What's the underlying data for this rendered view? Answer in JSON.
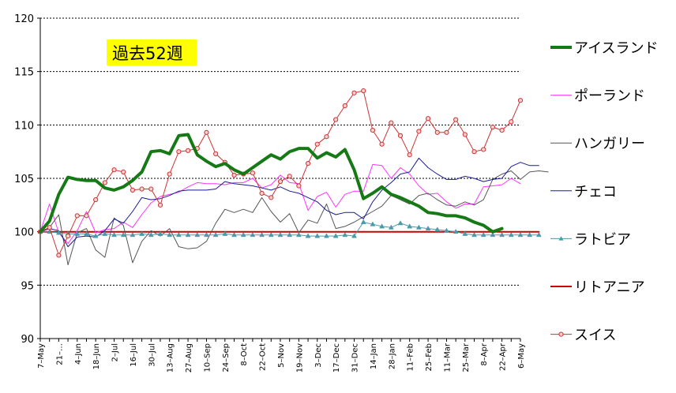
{
  "chart_data": {
    "type": "line",
    "title": "過去52週",
    "title_highlight_color": "#ffff00",
    "xlabel": "",
    "ylabel": "",
    "ylim": [
      90,
      120
    ],
    "yticks": [
      90,
      95,
      100,
      105,
      110,
      115,
      120
    ],
    "grid": "horizontal-dashed",
    "legend_position": "right",
    "x_tick_labels": [
      "7–May",
      "21–…",
      "4–Jun",
      "18–Jun",
      "2–Jul",
      "16–Jul",
      "30–Jul",
      "13–Aug",
      "27–Aug",
      "10–Sep",
      "24–Sep",
      "8–Oct",
      "22–Oct",
      "5–Nov",
      "19–Nov",
      "3–Dec",
      "17–Dec",
      "31–Dec",
      "14–Jan",
      "28–Jan",
      "11–Feb",
      "25–Feb",
      "11–Mar",
      "25–Mar",
      "8–Apr",
      "22–Apr",
      "6–May"
    ],
    "x_tick_every": 2,
    "series": [
      {
        "name": "アイスランド",
        "color": "#157a15",
        "width": 4,
        "marker": "none",
        "values": [
          100,
          101,
          103.5,
          105.1,
          104.9,
          104.8,
          104.8,
          104.1,
          103.9,
          104.2,
          104.8,
          105.6,
          107.5,
          107.6,
          107.3,
          109.0,
          109.1,
          107.2,
          106.6,
          106.1,
          106.4,
          105.8,
          105.4,
          106.0,
          106.6,
          107.2,
          106.8,
          107.5,
          107.8,
          107.8,
          106.9,
          107.4,
          107.0,
          107.7,
          105.8,
          103.1,
          103.6,
          104.2,
          103.5,
          103.2,
          102.8,
          102.4,
          101.8,
          101.7,
          101.5,
          101.5,
          101.3,
          100.9,
          100.6,
          100.0,
          100.3
        ]
      },
      {
        "name": "ポーランド",
        "color": "#ff33ff",
        "width": 1,
        "marker": "none",
        "values": [
          100,
          102.6,
          99.9,
          98.9,
          100.1,
          101.9,
          99.9,
          100.2,
          100.3,
          100.9,
          100.4,
          101.6,
          102.7,
          103.3,
          103.5,
          103.7,
          104.2,
          104.6,
          104.5,
          104.5,
          104.4,
          104.6,
          104.6,
          105.0,
          104.1,
          104.4,
          105.3,
          104.6,
          104.5,
          102.0,
          103.3,
          103.7,
          102.3,
          103.5,
          103.8,
          103.8,
          106.3,
          106.2,
          105.0,
          106.0,
          105.4,
          104.3,
          103.5,
          103.6,
          102.8,
          102.2,
          102.6,
          102.6,
          104.2,
          104.3,
          104.4,
          105.0,
          104.5
        ]
      },
      {
        "name": "ハンガリー",
        "color": "#555555",
        "width": 1,
        "marker": "none",
        "values": [
          100,
          100.4,
          101.6,
          96.9,
          99.9,
          100.3,
          98.3,
          97.6,
          101.3,
          100.6,
          97.1,
          99.1,
          100.1,
          99.6,
          100.3,
          98.6,
          98.4,
          98.5,
          99.1,
          100.8,
          102.1,
          101.8,
          102.1,
          101.8,
          103.2,
          101.9,
          100.9,
          101.7,
          99.9,
          101.1,
          100.8,
          102.6,
          100.3,
          100.5,
          100.9,
          101.4,
          101.9,
          102.4,
          103.4,
          103.0,
          102.6,
          103.4,
          103.6,
          103.0,
          102.5,
          102.4,
          102.8,
          102.5,
          103.0,
          104.9,
          105.4,
          105.7,
          104.9,
          105.6,
          105.7,
          105.6
        ]
      },
      {
        "name": "チェコ",
        "color": "#1a1a99",
        "width": 1,
        "marker": "none",
        "values": [
          100,
          100.3,
          100.1,
          98.6,
          99.5,
          99.6,
          99.5,
          100.1,
          101.2,
          100.8,
          101.9,
          103.2,
          103.0,
          103.1,
          103.4,
          103.8,
          103.9,
          103.9,
          103.9,
          104.0,
          104.7,
          104.5,
          104.4,
          104.3,
          104.1,
          103.9,
          104.2,
          103.8,
          103.6,
          103.2,
          102.8,
          102.0,
          101.6,
          101.8,
          101.8,
          101.2,
          102.8,
          103.9,
          104.6,
          105.4,
          105.6,
          106.9,
          106.0,
          105.4,
          104.9,
          104.9,
          105.2,
          105.0,
          104.7,
          104.9,
          105.0,
          106.1,
          106.5,
          106.2,
          106.2
        ]
      },
      {
        "name": "ラトビア",
        "color": "#4a9aaa",
        "width": 1,
        "marker": "triangle",
        "values": [
          100,
          100,
          99.9,
          99.8,
          99.8,
          99.8,
          99.6,
          99.8,
          99.7,
          99.7,
          99.7,
          99.8,
          99.7,
          99.8,
          99.7,
          99.7,
          99.7,
          99.7,
          99.7,
          99.7,
          99.8,
          99.7,
          99.7,
          99.7,
          99.7,
          99.7,
          99.7,
          99.7,
          99.7,
          99.6,
          99.6,
          99.6,
          99.6,
          99.7,
          99.6,
          100.9,
          100.7,
          100.5,
          100.4,
          100.8,
          100.5,
          100.4,
          100.3,
          100.2,
          100.1,
          100.0,
          99.8,
          99.7,
          99.7,
          99.7,
          99.7,
          99.7,
          99.7,
          99.7,
          99.7
        ]
      },
      {
        "name": "リトアニア",
        "color": "#cc0000",
        "width": 2,
        "marker": "none",
        "values": [
          100,
          100,
          100,
          100,
          100,
          100,
          100,
          100,
          100,
          100,
          100,
          100,
          100,
          100,
          100,
          100,
          100,
          100,
          100,
          100,
          100,
          100,
          100,
          100,
          100,
          100,
          100,
          100,
          100,
          100,
          100,
          100,
          100,
          100,
          100,
          100,
          100,
          100,
          100,
          100,
          100,
          100,
          100,
          100,
          100,
          100,
          100,
          100,
          100,
          100,
          100,
          100,
          100,
          100,
          100
        ]
      },
      {
        "name": "スイス",
        "color": "#cc3333",
        "width": 1,
        "marker": "circle",
        "values": [
          100,
          100.4,
          97.8,
          99.6,
          101.5,
          101.5,
          103.0,
          104.6,
          105.8,
          105.6,
          103.9,
          104.0,
          104.0,
          102.5,
          105.4,
          107.5,
          107.6,
          107.8,
          109.3,
          107.3,
          106.5,
          105.3,
          105.4,
          105.5,
          103.6,
          103.2,
          104.7,
          105.2,
          104.3,
          106.4,
          108.2,
          108.9,
          110.5,
          111.8,
          113.0,
          113.2,
          109.5,
          108.2,
          110.2,
          109.0,
          107.2,
          109.4,
          110.6,
          109.3,
          109.3,
          110.5,
          109.1,
          107.5,
          107.7,
          109.8,
          109.5,
          110.3,
          112.3
        ]
      }
    ]
  }
}
